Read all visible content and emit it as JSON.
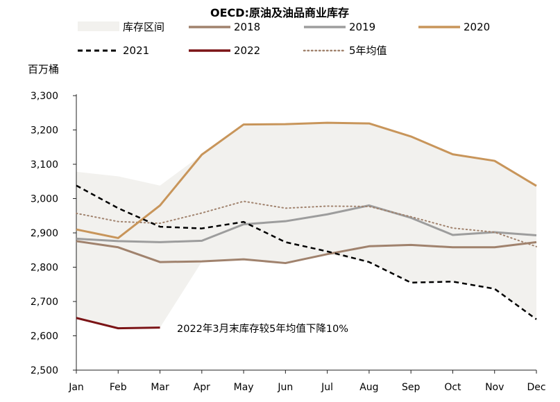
{
  "chart_data": {
    "type": "line",
    "title": "OECD:原油及油品商业库存",
    "ylabel": "百万桶",
    "xlabel": "",
    "categories": [
      "Jan",
      "Feb",
      "Mar",
      "Apr",
      "May",
      "Jun",
      "Jul",
      "Aug",
      "Sep",
      "Oct",
      "Nov",
      "Dec"
    ],
    "ylim": [
      2500,
      3300
    ],
    "yticks": [
      2500,
      2600,
      2700,
      2800,
      2900,
      3000,
      3100,
      3200,
      3300
    ],
    "ytick_labels": [
      "2,500",
      "2,600",
      "2,700",
      "2,800",
      "2,900",
      "3,000",
      "3,100",
      "3,200",
      "3,300"
    ],
    "range_band": {
      "name": "库存区间",
      "color": "#f2f1ee",
      "upper": [
        3078,
        3065,
        3038,
        3128,
        3216,
        3217,
        3221,
        3219,
        3181,
        3129,
        3110,
        3037
      ],
      "lower": [
        2650,
        2622,
        2624,
        2816,
        2823,
        2812,
        2838,
        2815,
        2755,
        2758,
        2737,
        2648
      ]
    },
    "series": [
      {
        "name": "2018",
        "color": "#a0826d",
        "style": "solid",
        "width": 3,
        "values": [
          2876,
          2858,
          2815,
          2817,
          2823,
          2812,
          2838,
          2861,
          2865,
          2858,
          2858,
          2873
        ]
      },
      {
        "name": "2019",
        "color": "#9d9d9d",
        "style": "solid",
        "width": 3,
        "values": [
          2883,
          2876,
          2873,
          2877,
          2925,
          2934,
          2954,
          2980,
          2944,
          2894,
          2902,
          2893
        ]
      },
      {
        "name": "2020",
        "color": "#c8955a",
        "style": "solid",
        "width": 3,
        "values": [
          2910,
          2885,
          2980,
          3128,
          3216,
          3217,
          3221,
          3219,
          3181,
          3129,
          3110,
          3037
        ]
      },
      {
        "name": "2021",
        "color": "#000000",
        "style": "dashed",
        "width": 2.5,
        "values": [
          3038,
          2972,
          2918,
          2913,
          2932,
          2873,
          2846,
          2815,
          2755,
          2758,
          2737,
          2648
        ]
      },
      {
        "name": "2022",
        "color": "#7b1416",
        "style": "solid",
        "width": 3,
        "values": [
          2652,
          2622,
          2624,
          null,
          null,
          null,
          null,
          null,
          null,
          null,
          null,
          null
        ]
      },
      {
        "name": "5年均值",
        "color": "#a0826d",
        "style": "dotted",
        "width": 2,
        "values": [
          2957,
          2933,
          2928,
          2958,
          2992,
          2972,
          2978,
          2977,
          2947,
          2914,
          2902,
          2860
        ]
      }
    ],
    "legend": {
      "position": "top",
      "items": [
        "库存区间",
        "2018",
        "2019",
        "2020",
        "2021",
        "2022",
        "5年均值"
      ]
    },
    "annotation": {
      "text": "2022年3月末库存较5年均值下降10%",
      "anchor_category": "Mar",
      "anchor_value": 2624
    }
  }
}
